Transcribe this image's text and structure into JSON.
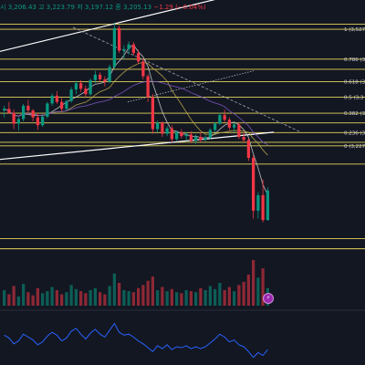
{
  "ohlc": {
    "symbol_fragment": "시",
    "open": "3,206.43",
    "high_label": "고",
    "high": "3,223.79",
    "low_label": "저",
    "low": "3,197.12",
    "close_label": "종",
    "close": "3,205.13",
    "change": "−1.29",
    "change_pct": "(−0.04%)"
  },
  "colors": {
    "background": "#131722",
    "up": "#089981",
    "down": "#f23645",
    "fib_line": "#e6d45a",
    "trend_line": "#ffffff",
    "rsi": "#2962ff",
    "ma_fast": "#c8c8c8",
    "ma_mid": "#b8a64a",
    "ma_slow": "#7e57c2"
  },
  "alert_icon": "lightning-icon",
  "chart_data": {
    "type": "candlestick",
    "price_range": [
      2940,
      3560
    ],
    "fib_levels": [
      {
        "ratio": "1",
        "label": "1 (3,527",
        "price": 3527
      },
      {
        "ratio": "0.786",
        "label": "0.786 (3,",
        "price": 3450
      },
      {
        "ratio": "0.618",
        "label": "0.618 (3,",
        "price": 3392
      },
      {
        "ratio": "0.5",
        "label": "0.5 (3,3",
        "price": 3352
      },
      {
        "ratio": "0.382",
        "label": "0.382 (3,",
        "price": 3311
      },
      {
        "ratio": "0.236",
        "label": "0.236 (3,",
        "price": 3261
      },
      {
        "ratio": "0",
        "label": "0 (3,227",
        "price": 3227
      }
    ],
    "extra_levels": [
      3540,
      3424,
      3286,
      3236,
      3180,
      2988,
      2962
    ],
    "candles": [
      [
        3318,
        3330,
        3300,
        3322
      ],
      [
        3322,
        3340,
        3310,
        3312
      ],
      [
        3312,
        3320,
        3270,
        3284
      ],
      [
        3284,
        3300,
        3266,
        3296
      ],
      [
        3296,
        3335,
        3290,
        3330
      ],
      [
        3330,
        3345,
        3310,
        3318
      ],
      [
        3318,
        3322,
        3290,
        3300
      ],
      [
        3300,
        3312,
        3268,
        3280
      ],
      [
        3280,
        3305,
        3276,
        3302
      ],
      [
        3302,
        3340,
        3298,
        3336
      ],
      [
        3336,
        3362,
        3330,
        3356
      ],
      [
        3356,
        3368,
        3335,
        3340
      ],
      [
        3340,
        3350,
        3316,
        3322
      ],
      [
        3322,
        3346,
        3318,
        3342
      ],
      [
        3342,
        3378,
        3338,
        3372
      ],
      [
        3372,
        3394,
        3360,
        3388
      ],
      [
        3388,
        3396,
        3366,
        3374
      ],
      [
        3374,
        3382,
        3352,
        3360
      ],
      [
        3360,
        3400,
        3356,
        3396
      ],
      [
        3396,
        3420,
        3388,
        3410
      ],
      [
        3410,
        3416,
        3392,
        3398
      ],
      [
        3398,
        3406,
        3380,
        3392
      ],
      [
        3392,
        3436,
        3388,
        3430
      ],
      [
        3430,
        3544,
        3426,
        3530
      ],
      [
        3530,
        3536,
        3466,
        3472
      ],
      [
        3472,
        3486,
        3450,
        3476
      ],
      [
        3476,
        3496,
        3462,
        3488
      ],
      [
        3488,
        3494,
        3460,
        3466
      ],
      [
        3466,
        3474,
        3438,
        3444
      ],
      [
        3444,
        3452,
        3398,
        3406
      ],
      [
        3406,
        3412,
        3340,
        3352
      ],
      [
        3352,
        3360,
        3258,
        3270
      ],
      [
        3270,
        3292,
        3262,
        3286
      ],
      [
        3286,
        3290,
        3250,
        3258
      ],
      [
        3258,
        3278,
        3252,
        3272
      ],
      [
        3272,
        3280,
        3236,
        3244
      ],
      [
        3244,
        3266,
        3240,
        3262
      ],
      [
        3262,
        3270,
        3246,
        3252
      ],
      [
        3252,
        3262,
        3240,
        3256
      ],
      [
        3256,
        3264,
        3234,
        3240
      ],
      [
        3240,
        3256,
        3232,
        3250
      ],
      [
        3250,
        3262,
        3236,
        3242
      ],
      [
        3242,
        3254,
        3238,
        3248
      ],
      [
        3248,
        3272,
        3244,
        3268
      ],
      [
        3268,
        3288,
        3262,
        3284
      ],
      [
        3284,
        3312,
        3280,
        3306
      ],
      [
        3306,
        3320,
        3288,
        3294
      ],
      [
        3294,
        3300,
        3268,
        3274
      ],
      [
        3274,
        3286,
        3262,
        3282
      ],
      [
        3282,
        3288,
        3244,
        3250
      ],
      [
        3250,
        3262,
        3236,
        3242
      ],
      [
        3242,
        3246,
        3188,
        3196
      ],
      [
        3196,
        3202,
        3040,
        3060
      ],
      [
        3060,
        3108,
        3040,
        3100
      ],
      [
        3100,
        3140,
        3030,
        3036
      ],
      [
        3036,
        3120,
        3034,
        3112
      ]
    ],
    "volume": [
      30,
      22,
      38,
      18,
      42,
      26,
      20,
      34,
      24,
      28,
      36,
      30,
      22,
      26,
      40,
      32,
      28,
      24,
      30,
      34,
      26,
      22,
      38,
      62,
      44,
      30,
      28,
      26,
      34,
      40,
      48,
      56,
      30,
      36,
      28,
      32,
      26,
      24,
      30,
      28,
      26,
      34,
      30,
      38,
      32,
      44,
      30,
      36,
      28,
      40,
      46,
      60,
      88,
      54,
      72,
      34
    ],
    "rsi": [
      58,
      52,
      40,
      46,
      60,
      54,
      48,
      38,
      44,
      56,
      64,
      58,
      46,
      52,
      66,
      72,
      60,
      50,
      62,
      70,
      60,
      54,
      68,
      82,
      64,
      58,
      60,
      54,
      46,
      40,
      32,
      24,
      36,
      30,
      38,
      28,
      34,
      32,
      36,
      30,
      34,
      30,
      34,
      42,
      50,
      60,
      54,
      44,
      48,
      38,
      34,
      24,
      12,
      22,
      16,
      28
    ]
  }
}
